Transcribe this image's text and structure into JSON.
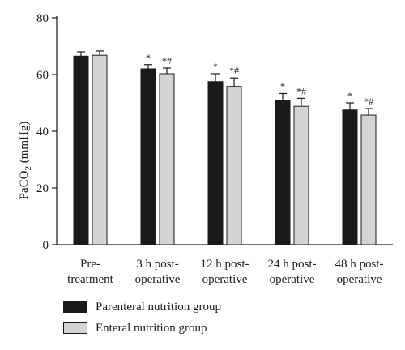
{
  "chart_data": {
    "type": "bar",
    "categories": [
      [
        "Pre-",
        "treatment"
      ],
      [
        "3 h post-",
        "operative"
      ],
      [
        "12 h post-",
        "operative"
      ],
      [
        "24 h post-",
        "operative"
      ],
      [
        "48 h post-",
        "operative"
      ]
    ],
    "series": [
      {
        "name": "Parenteral nutrition group",
        "color": "#1a1a1a",
        "values": [
          66.5,
          62.0,
          57.5,
          50.8,
          47.5
        ],
        "errors": [
          1.5,
          1.5,
          2.8,
          2.5,
          2.5
        ],
        "markers": [
          "",
          "*",
          "*",
          "*",
          "*"
        ]
      },
      {
        "name": "Enteral nutrition group",
        "color": "#d4d4d4",
        "values": [
          66.8,
          60.3,
          55.8,
          48.8,
          45.7
        ],
        "errors": [
          1.5,
          2.0,
          3.0,
          2.8,
          2.3
        ],
        "markers": [
          "",
          "*#",
          "*#",
          "*#",
          "*#"
        ]
      }
    ],
    "ylabel_main": "PaCO",
    "ylabel_sub": "2",
    "ylabel_unit": " (mmHg)",
    "ylim": [
      0,
      80
    ],
    "yticks": [
      0,
      20,
      40,
      60,
      80
    ],
    "legend_position": "bottom-left"
  }
}
